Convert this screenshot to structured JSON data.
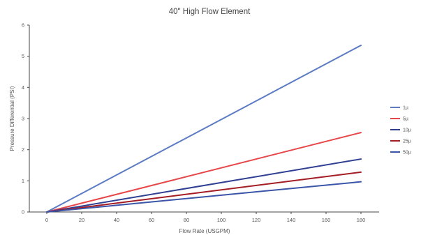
{
  "chart_data": {
    "type": "line",
    "title": "40\" High Flow Element",
    "xlabel": "Flow Rate (USGPM)",
    "ylabel": "Pressure Differential (PSI)",
    "xlim": [
      0,
      180
    ],
    "ylim": [
      0,
      6
    ],
    "xticks": [
      0,
      20,
      40,
      60,
      80,
      100,
      120,
      140,
      160,
      180
    ],
    "yticks": [
      0,
      1,
      2,
      3,
      4,
      5,
      6
    ],
    "grid": false,
    "legend_position": "right",
    "series": [
      {
        "name": "1µ",
        "color": "#5b7bc4",
        "x": [
          0,
          180
        ],
        "y": [
          0,
          5.35
        ]
      },
      {
        "name": "5µ",
        "color": "#e8474a",
        "x": [
          0,
          180
        ],
        "y": [
          0,
          2.55
        ]
      },
      {
        "name": "10µ",
        "color": "#2f3f93",
        "x": [
          0,
          180
        ],
        "y": [
          0,
          1.7
        ]
      },
      {
        "name": "25µ",
        "color": "#a31d24",
        "x": [
          0,
          180
        ],
        "y": [
          0,
          1.28
        ]
      },
      {
        "name": "50µ",
        "color": "#3a55a8",
        "x": [
          0,
          180
        ],
        "y": [
          0,
          0.97
        ]
      }
    ]
  }
}
